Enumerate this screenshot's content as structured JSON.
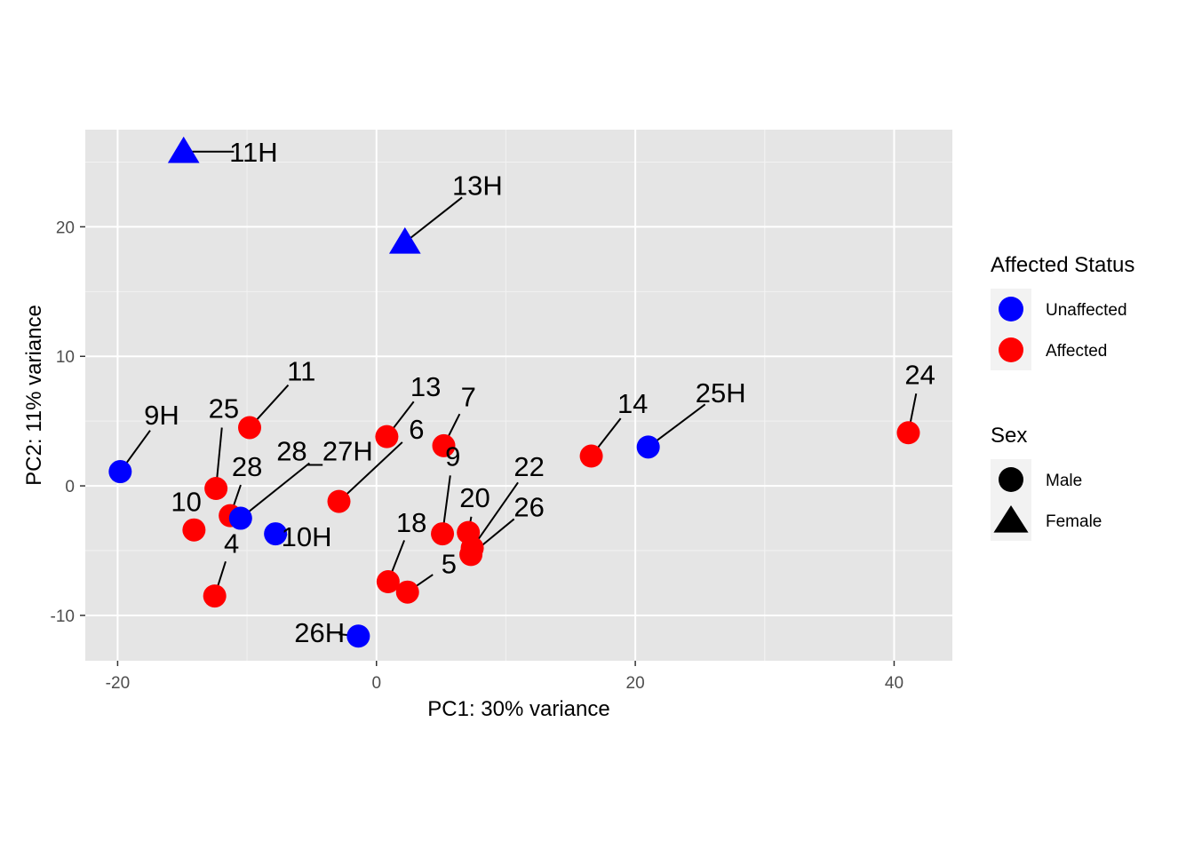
{
  "chart_data": {
    "type": "scatter",
    "title": "",
    "xlabel": "PC1: 30% variance",
    "ylabel": "PC2: 11% variance",
    "xlim": [
      -22.5,
      44.5
    ],
    "ylim": [
      -13.5,
      27.5
    ],
    "x_ticks": [
      -20,
      0,
      20,
      40
    ],
    "y_ticks": [
      -10,
      0,
      10,
      20
    ],
    "x_tick_labels": [
      "-20",
      "0",
      "20",
      "40"
    ],
    "y_tick_labels": [
      "-10",
      "0",
      "10",
      "20"
    ],
    "grid": true,
    "legend_position": "right",
    "legends": [
      {
        "title": "Affected Status",
        "entries": [
          {
            "label": "Unaffected",
            "color": "#0000ff",
            "shape": "circle"
          },
          {
            "label": "Affected",
            "color": "#ff0000",
            "shape": "circle"
          }
        ]
      },
      {
        "title": "Sex",
        "entries": [
          {
            "label": "Male",
            "color": "#000000",
            "shape": "circle"
          },
          {
            "label": "Female",
            "color": "#000000",
            "shape": "triangle"
          }
        ]
      }
    ],
    "points": [
      {
        "label": "11H",
        "x": -14.9,
        "y": 25.8,
        "status": "Unaffected",
        "sex": "Female",
        "lx": -9.5,
        "ly": 25.8
      },
      {
        "label": "13H",
        "x": 2.2,
        "y": 18.8,
        "status": "Unaffected",
        "sex": "Female",
        "lx": 7.8,
        "ly": 23.2
      },
      {
        "label": "9H",
        "x": -19.8,
        "y": 1.1,
        "status": "Unaffected",
        "sex": "Male",
        "lx": -16.6,
        "ly": 5.5
      },
      {
        "label": "25",
        "x": -12.4,
        "y": -0.2,
        "status": "Affected",
        "sex": "Male",
        "lx": -11.8,
        "ly": 6.0
      },
      {
        "label": "11",
        "x": -9.8,
        "y": 4.5,
        "status": "Affected",
        "sex": "Male",
        "lx": -5.8,
        "ly": 8.9
      },
      {
        "label": "28",
        "x": -11.3,
        "y": -2.3,
        "status": "Affected",
        "sex": "Male",
        "lx": -10.0,
        "ly": 1.5
      },
      {
        "label": "10",
        "x": -14.1,
        "y": -3.4,
        "status": "Affected",
        "sex": "Male",
        "lx": -14.7,
        "ly": -1.2
      },
      {
        "label": "28_27H",
        "x": -10.5,
        "y": -2.5,
        "status": "Unaffected",
        "sex": "Male",
        "lx": -4.0,
        "ly": 2.7
      },
      {
        "label": "10H",
        "x": -7.8,
        "y": -3.7,
        "status": "Unaffected",
        "sex": "Male",
        "lx": -5.4,
        "ly": -3.9
      },
      {
        "label": "4",
        "x": -12.5,
        "y": -8.5,
        "status": "Affected",
        "sex": "Male",
        "lx": -11.2,
        "ly": -4.4
      },
      {
        "label": "26H",
        "x": -1.4,
        "y": -11.6,
        "status": "Unaffected",
        "sex": "Male",
        "lx": -4.4,
        "ly": -11.3
      },
      {
        "label": "13",
        "x": 0.8,
        "y": 3.8,
        "status": "Affected",
        "sex": "Male",
        "lx": 3.8,
        "ly": 7.7
      },
      {
        "label": "6",
        "x": -2.9,
        "y": -1.2,
        "status": "Affected",
        "sex": "Male",
        "lx": 3.1,
        "ly": 4.4
      },
      {
        "label": "7",
        "x": 5.2,
        "y": 3.1,
        "status": "Affected",
        "sex": "Male",
        "lx": 7.1,
        "ly": 6.9
      },
      {
        "label": "9",
        "x": 5.1,
        "y": -3.7,
        "status": "Affected",
        "sex": "Male",
        "lx": 5.9,
        "ly": 2.3
      },
      {
        "label": "20",
        "x": 7.1,
        "y": -3.6,
        "status": "Affected",
        "sex": "Male",
        "lx": 7.6,
        "ly": -0.9
      },
      {
        "label": "22",
        "x": 7.4,
        "y": -4.8,
        "status": "Affected",
        "sex": "Male",
        "lx": 11.8,
        "ly": 1.5
      },
      {
        "label": "26",
        "x": 7.3,
        "y": -5.3,
        "status": "Affected",
        "sex": "Male",
        "lx": 11.8,
        "ly": -1.6
      },
      {
        "label": "18",
        "x": 0.9,
        "y": -7.4,
        "status": "Affected",
        "sex": "Male",
        "lx": 2.7,
        "ly": -2.8
      },
      {
        "label": "5",
        "x": 2.4,
        "y": -8.2,
        "status": "Affected",
        "sex": "Male",
        "lx": 5.6,
        "ly": -6.0
      },
      {
        "label": "14",
        "x": 16.6,
        "y": 2.3,
        "status": "Affected",
        "sex": "Male",
        "lx": 19.8,
        "ly": 6.4
      },
      {
        "label": "25H",
        "x": 21.0,
        "y": 3.0,
        "status": "Unaffected",
        "sex": "Male",
        "lx": 26.6,
        "ly": 7.2
      },
      {
        "label": "24",
        "x": 41.1,
        "y": 4.1,
        "status": "Affected",
        "sex": "Male",
        "lx": 42.0,
        "ly": 8.6
      }
    ]
  }
}
